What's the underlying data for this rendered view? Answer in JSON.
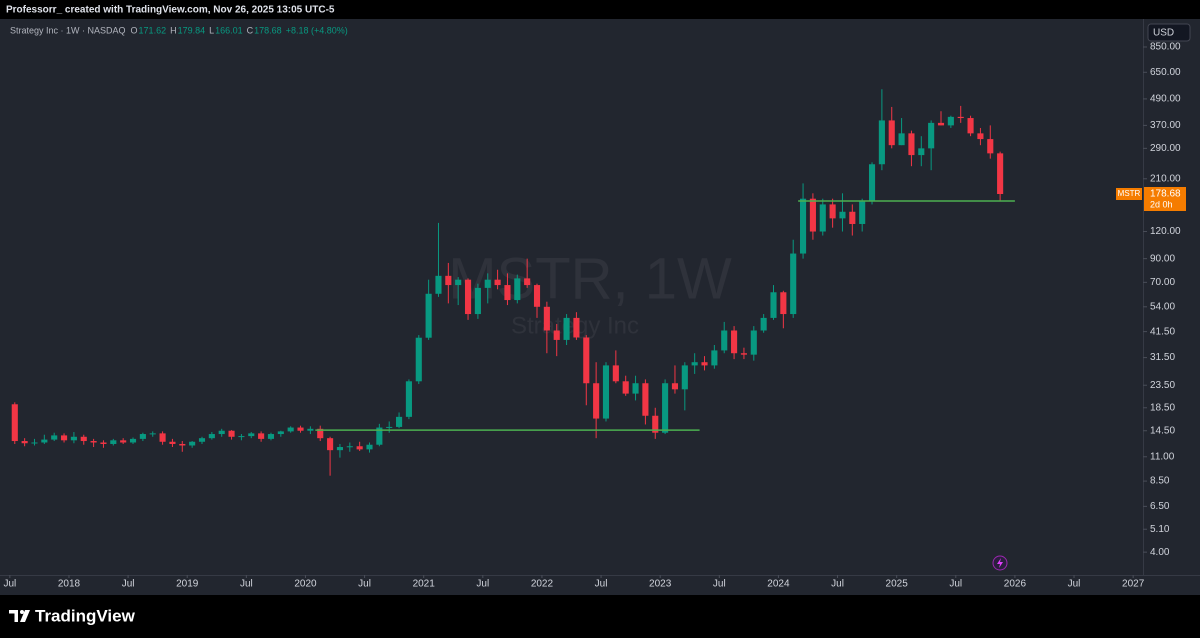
{
  "header": "Professorr_ created with TradingView.com, Nov 26, 2025 13:05 UTC-5",
  "footer_brand": "TradingView",
  "currency_button": "USD",
  "chart_data": {
    "type": "candlestick",
    "legend": {
      "symbol": "Strategy Inc · 1W · NASDAQ",
      "items": [
        {
          "label": "O",
          "value": 171.62
        },
        {
          "label": "H",
          "value": 179.84
        },
        {
          "label": "L",
          "value": 166.01
        },
        {
          "label": "C",
          "value": 178.68
        }
      ],
      "change": "+8.18 (+4.80%)"
    },
    "watermark": {
      "title": "MSTR, 1W",
      "subtitle": "Strategy Inc"
    },
    "price_tag": {
      "symbol": "MSTR",
      "value": 178.68,
      "countdown": "2d 0h"
    },
    "log_scale": true,
    "grid": false,
    "up_color": "#089981",
    "down_color": "#f23645",
    "hline_color": "#4caf50",
    "hlines": [
      {
        "value": 14.6,
        "x": [
          "2020-02",
          "2023-05"
        ]
      },
      {
        "value": 166,
        "x": [
          "2024-03",
          "2026-01"
        ]
      }
    ],
    "xlim": [
      "2017-06",
      "2027-02"
    ],
    "xticks": [
      {
        "value": "2017-07",
        "label": "Jul"
      },
      {
        "value": "2018-01",
        "label": "2018"
      },
      {
        "value": "2018-07",
        "label": "Jul"
      },
      {
        "value": "2019-01",
        "label": "2019"
      },
      {
        "value": "2019-07",
        "label": "Jul"
      },
      {
        "value": "2020-01",
        "label": "2020"
      },
      {
        "value": "2020-07",
        "label": "Jul"
      },
      {
        "value": "2021-01",
        "label": "2021"
      },
      {
        "value": "2021-07",
        "label": "Jul"
      },
      {
        "value": "2022-01",
        "label": "2022"
      },
      {
        "value": "2022-07",
        "label": "Jul"
      },
      {
        "value": "2023-01",
        "label": "2023"
      },
      {
        "value": "2023-07",
        "label": "Jul"
      },
      {
        "value": "2024-01",
        "label": "2024"
      },
      {
        "value": "2024-07",
        "label": "Jul"
      },
      {
        "value": "2025-01",
        "label": "2025"
      },
      {
        "value": "2025-07",
        "label": "Jul"
      },
      {
        "value": "2026-01",
        "label": "2026"
      },
      {
        "value": "2026-07",
        "label": "Jul"
      },
      {
        "value": "2027-01",
        "label": "2027"
      }
    ],
    "ylim": [
      3.24,
      935
    ],
    "yticks": [
      {
        "value": 850,
        "label": "850.00"
      },
      {
        "value": 650,
        "label": "650.00"
      },
      {
        "value": 490,
        "label": "490.00"
      },
      {
        "value": 370,
        "label": "370.00"
      },
      {
        "value": 290,
        "label": "290.00"
      },
      {
        "value": 210,
        "label": "210.00"
      },
      {
        "value": 120,
        "label": "120.00"
      },
      {
        "value": 90,
        "label": "90.00"
      },
      {
        "value": 70,
        "label": "70.00"
      },
      {
        "value": 54,
        "label": "54.00"
      },
      {
        "value": 41.5,
        "label": "41.50"
      },
      {
        "value": 31.5,
        "label": "31.50"
      },
      {
        "value": 23.5,
        "label": "23.50"
      },
      {
        "value": 18.5,
        "label": "18.50"
      },
      {
        "value": 14.5,
        "label": "14.50"
      },
      {
        "value": 11,
        "label": "11.00"
      },
      {
        "value": 8.5,
        "label": "8.50"
      },
      {
        "value": 6.5,
        "label": "6.50"
      },
      {
        "value": 5.1,
        "label": "5.10"
      },
      {
        "value": 4,
        "label": "4.00"
      }
    ],
    "x": [
      "2017-07",
      "2017-08",
      "2017-09",
      "2017-10",
      "2017-11",
      "2017-12",
      "2018-01",
      "2018-02",
      "2018-03",
      "2018-04",
      "2018-05",
      "2018-06",
      "2018-07",
      "2018-08",
      "2018-09",
      "2018-10",
      "2018-11",
      "2018-12",
      "2019-01",
      "2019-02",
      "2019-03",
      "2019-04",
      "2019-05",
      "2019-06",
      "2019-07",
      "2019-08",
      "2019-09",
      "2019-10",
      "2019-11",
      "2019-12",
      "2020-01",
      "2020-02",
      "2020-03",
      "2020-04",
      "2020-05",
      "2020-06",
      "2020-07",
      "2020-08",
      "2020-09",
      "2020-10",
      "2020-11",
      "2020-12",
      "2021-01",
      "2021-02",
      "2021-03",
      "2021-04",
      "2021-05",
      "2021-06",
      "2021-07",
      "2021-08",
      "2021-09",
      "2021-10",
      "2021-11",
      "2021-12",
      "2022-01",
      "2022-02",
      "2022-03",
      "2022-04",
      "2022-05",
      "2022-06",
      "2022-07",
      "2022-08",
      "2022-09",
      "2022-10",
      "2022-11",
      "2022-12",
      "2023-01",
      "2023-02",
      "2023-03",
      "2023-04",
      "2023-05",
      "2023-06",
      "2023-07",
      "2023-08",
      "2023-09",
      "2023-10",
      "2023-11",
      "2023-12",
      "2024-01",
      "2024-02",
      "2024-03",
      "2024-04",
      "2024-05",
      "2024-06",
      "2024-07",
      "2024-08",
      "2024-09",
      "2024-10",
      "2024-11",
      "2024-12",
      "2025-01",
      "2025-02",
      "2025-03",
      "2025-04",
      "2025-05",
      "2025-06",
      "2025-07",
      "2025-08",
      "2025-09",
      "2025-10",
      "2025-11"
    ],
    "open": [
      19.2,
      13.0,
      12.7,
      12.8,
      13.2,
      13.8,
      13.1,
      13.6,
      13.0,
      12.8,
      12.6,
      13.1,
      12.8,
      13.3,
      14.0,
      14.1,
      12.9,
      12.6,
      12.4,
      12.9,
      13.4,
      14.0,
      14.5,
      13.6,
      13.7,
      14.1,
      13.3,
      14.0,
      14.4,
      15.0,
      14.5,
      14.8,
      13.4,
      11.8,
      12.2,
      12.3,
      11.9,
      12.5,
      15.0,
      15.1,
      16.8,
      24.5,
      38.9,
      62,
      75,
      68,
      72,
      50,
      66,
      72,
      68,
      58,
      73,
      68,
      54,
      42,
      38,
      48,
      39,
      24,
      16.5,
      29,
      24.5,
      21.5,
      24,
      17,
      14.2,
      24,
      22.5,
      29,
      30,
      29,
      34,
      42,
      33,
      32.5,
      42,
      48,
      63,
      50,
      95,
      170,
      120,
      160,
      138,
      148,
      130,
      165,
      245,
      390,
      300,
      340,
      270,
      290,
      380,
      370,
      405,
      400,
      340,
      320,
      275
    ],
    "high": [
      19.6,
      13.4,
      13.3,
      13.9,
      14.2,
      14.1,
      14.3,
      13.9,
      13.3,
      13.1,
      13.3,
      13.4,
      13.5,
      14.2,
      14.4,
      14.4,
      13.3,
      13.0,
      13.0,
      13.6,
      14.3,
      14.8,
      14.6,
      14.0,
      14.3,
      14.4,
      14.2,
      14.5,
      15.2,
      15.3,
      15.2,
      15.3,
      13.6,
      12.6,
      12.8,
      12.9,
      12.8,
      15.6,
      16.0,
      17.6,
      25,
      40,
      72,
      131.5,
      86,
      74,
      73,
      69,
      77,
      80,
      77,
      76,
      90,
      69,
      57,
      45,
      50,
      51,
      40,
      30,
      30,
      34,
      26,
      26,
      25,
      18.5,
      25,
      29,
      30,
      33,
      32,
      36,
      46,
      44,
      35,
      44,
      50,
      68,
      64,
      110,
      200,
      180,
      170,
      170,
      180,
      160,
      170,
      250,
      543,
      450,
      400,
      350,
      330,
      390,
      430,
      410,
      455,
      410,
      360,
      370,
      280
    ],
    "low": [
      12.6,
      12.3,
      12.4,
      12.6,
      13.0,
      12.8,
      12.7,
      12.5,
      12.2,
      12.1,
      12.4,
      12.6,
      12.6,
      13.0,
      13.6,
      12.5,
      12.2,
      11.6,
      12.1,
      12.6,
      13.2,
      13.6,
      13.2,
      13.1,
      13.4,
      12.9,
      13.1,
      13.6,
      14.2,
      14.2,
      14.0,
      13.0,
      9.0,
      10.9,
      11.6,
      11.7,
      11.5,
      12.3,
      14.2,
      14.9,
      16.4,
      23.8,
      38,
      60,
      56,
      55,
      47,
      47.5,
      56,
      65,
      55,
      56,
      66,
      48,
      33,
      32,
      36,
      38,
      19,
      13.4,
      16,
      24,
      21,
      20,
      15.5,
      13.3,
      14,
      21.5,
      18,
      26.5,
      27.5,
      28,
      33,
      31,
      31,
      30.5,
      41,
      47,
      43,
      48,
      90,
      110,
      115,
      125,
      120,
      115,
      120,
      160,
      230,
      290,
      300,
      240,
      240,
      230,
      370,
      360,
      380,
      330,
      300,
      260,
      166
    ],
    "close": [
      13.0,
      12.7,
      12.8,
      13.2,
      13.8,
      13.1,
      13.6,
      13.0,
      12.8,
      12.6,
      13.1,
      12.8,
      13.3,
      14.0,
      14.1,
      12.9,
      12.6,
      12.4,
      12.9,
      13.4,
      14.0,
      14.5,
      13.6,
      13.7,
      14.1,
      13.3,
      14.0,
      14.4,
      15.0,
      14.5,
      14.8,
      13.4,
      11.8,
      12.2,
      12.3,
      11.9,
      12.5,
      15.0,
      15.1,
      16.8,
      24.5,
      38.9,
      62,
      75,
      68,
      72,
      50,
      66,
      72,
      68,
      58,
      73,
      68,
      54,
      42,
      38,
      48,
      39,
      24,
      16.5,
      29,
      24.5,
      21.5,
      24,
      17,
      14.2,
      24,
      22.5,
      29,
      30,
      29,
      34,
      42,
      33,
      32.5,
      42,
      48,
      63,
      50,
      95,
      170,
      120,
      160,
      138,
      148,
      130,
      165,
      245,
      390,
      300,
      340,
      270,
      290,
      380,
      370,
      405,
      400,
      340,
      320,
      275,
      178.68
    ]
  }
}
